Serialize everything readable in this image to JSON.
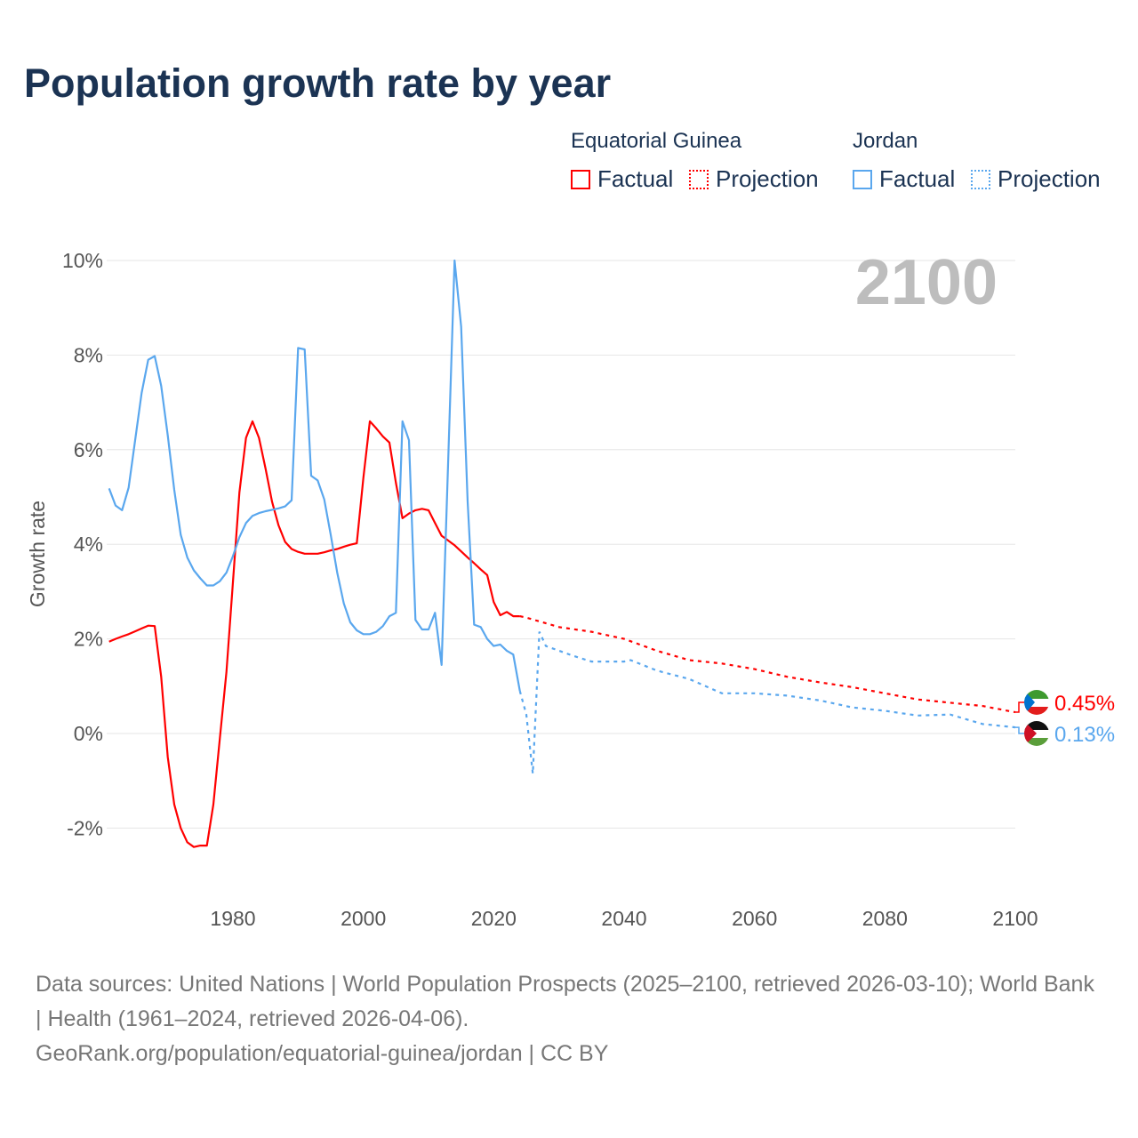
{
  "chart_data": {
    "type": "line",
    "title": "Population growth rate by year",
    "xlabel": "",
    "ylabel": "Growth rate",
    "xlim": [
      1961,
      2100
    ],
    "ylim": [
      -3,
      10
    ],
    "x_ticks": [
      "1980",
      "2000",
      "2020",
      "2040",
      "2060",
      "2080",
      "2100"
    ],
    "y_ticks": [
      {
        "v": 10,
        "label": "10%"
      },
      {
        "v": 8,
        "label": "8%"
      },
      {
        "v": 6,
        "label": "6%"
      },
      {
        "v": 4,
        "label": "4%"
      },
      {
        "v": 2,
        "label": "2%"
      },
      {
        "v": 0,
        "label": "0%"
      },
      {
        "v": -2,
        "label": "-2%"
      }
    ],
    "grid": true,
    "year_overlay": "2100",
    "legend": {
      "placement": "top-right",
      "groups": [
        {
          "name": "Equatorial Guinea",
          "factual": "Factual",
          "projection": "Projection"
        },
        {
          "name": "Jordan",
          "factual": "Factual",
          "projection": "Projection"
        }
      ]
    },
    "series": [
      {
        "name": "Equatorial Guinea",
        "color": "#ff0000",
        "end_label": "0.45%",
        "factual": {
          "x": [
            1961,
            1962,
            1963,
            1964,
            1965,
            1966,
            1967,
            1968,
            1969,
            1970,
            1971,
            1972,
            1973,
            1974,
            1975,
            1976,
            1977,
            1978,
            1979,
            1980,
            1981,
            1982,
            1983,
            1984,
            1985,
            1986,
            1987,
            1988,
            1989,
            1990,
            1991,
            1992,
            1993,
            1994,
            1995,
            1996,
            1997,
            1998,
            1999,
            2000,
            2001,
            2002,
            2003,
            2004,
            2005,
            2006,
            2007,
            2008,
            2009,
            2010,
            2011,
            2012,
            2013,
            2014,
            2015,
            2016,
            2017,
            2018,
            2019,
            2020,
            2021,
            2022,
            2023,
            2024
          ],
          "y": [
            1.94,
            2.0,
            2.05,
            2.1,
            2.16,
            2.22,
            2.28,
            2.27,
            1.2,
            -0.5,
            -1.5,
            -2.0,
            -2.3,
            -2.4,
            -2.37,
            -2.37,
            -1.5,
            -0.1,
            1.3,
            3.2,
            5.1,
            6.25,
            6.6,
            6.25,
            5.6,
            4.9,
            4.4,
            4.05,
            3.9,
            3.84,
            3.8,
            3.8,
            3.8,
            3.83,
            3.87,
            3.9,
            3.95,
            3.99,
            4.02,
            5.4,
            6.6,
            6.45,
            6.28,
            6.15,
            5.3,
            4.55,
            4.65,
            4.72,
            4.75,
            4.72,
            4.45,
            4.18,
            4.08,
            3.98,
            3.85,
            3.72,
            3.6,
            3.47,
            3.35,
            2.78,
            2.5,
            2.57,
            2.48,
            2.48
          ]
        },
        "projection": {
          "x": [
            2024,
            2025,
            2030,
            2035,
            2040,
            2045,
            2050,
            2055,
            2060,
            2065,
            2070,
            2075,
            2080,
            2085,
            2090,
            2095,
            2100
          ],
          "y": [
            2.48,
            2.45,
            2.25,
            2.15,
            2.0,
            1.75,
            1.55,
            1.48,
            1.36,
            1.2,
            1.08,
            0.98,
            0.85,
            0.72,
            0.65,
            0.58,
            0.45
          ]
        }
      },
      {
        "name": "Jordan",
        "color": "#5aa7ee",
        "end_label": "0.13%",
        "factual": {
          "x": [
            1961,
            1962,
            1963,
            1964,
            1965,
            1966,
            1967,
            1968,
            1969,
            1970,
            1971,
            1972,
            1973,
            1974,
            1975,
            1976,
            1977,
            1978,
            1979,
            1980,
            1981,
            1982,
            1983,
            1984,
            1985,
            1986,
            1987,
            1988,
            1989,
            1990,
            1991,
            1992,
            1993,
            1994,
            1995,
            1996,
            1997,
            1998,
            1999,
            2000,
            2001,
            2002,
            2003,
            2004,
            2005,
            2006,
            2007,
            2008,
            2009,
            2010,
            2011,
            2012,
            2013,
            2014,
            2015,
            2016,
            2017,
            2018,
            2019,
            2020,
            2021,
            2022,
            2023,
            2024
          ],
          "y": [
            5.18,
            4.82,
            4.72,
            5.2,
            6.2,
            7.2,
            7.9,
            7.98,
            7.35,
            6.3,
            5.15,
            4.2,
            3.72,
            3.45,
            3.28,
            3.13,
            3.13,
            3.22,
            3.4,
            3.75,
            4.15,
            4.45,
            4.6,
            4.66,
            4.7,
            4.73,
            4.76,
            4.8,
            4.93,
            8.15,
            8.12,
            5.45,
            5.35,
            4.95,
            4.2,
            3.4,
            2.75,
            2.35,
            2.18,
            2.1,
            2.1,
            2.15,
            2.27,
            2.48,
            2.55,
            6.6,
            6.2,
            2.4,
            2.2,
            2.2,
            2.55,
            1.45,
            5.7,
            10.0,
            8.6,
            4.9,
            2.3,
            2.25,
            2.0,
            1.85,
            1.88,
            1.75,
            1.67,
            0.9
          ]
        },
        "projection": {
          "x": [
            2024,
            2025,
            2026,
            2027,
            2028,
            2030,
            2032,
            2035,
            2040,
            2041,
            2045,
            2050,
            2055,
            2060,
            2065,
            2070,
            2075,
            2080,
            2085,
            2090,
            2095,
            2100
          ],
          "y": [
            0.9,
            0.4,
            -0.85,
            2.15,
            1.85,
            1.75,
            1.65,
            1.52,
            1.52,
            1.55,
            1.33,
            1.15,
            0.85,
            0.85,
            0.8,
            0.7,
            0.55,
            0.48,
            0.38,
            0.4,
            0.2,
            0.13
          ]
        }
      }
    ]
  },
  "footer": {
    "sources": "Data sources: United Nations | World Population Prospects (2025–2100, retrieved 2026-03-10); World Bank | Health (1961–2024, retrieved 2026-04-06).",
    "link": "GeoRank.org/population/equatorial-guinea/jordan | CC BY"
  }
}
